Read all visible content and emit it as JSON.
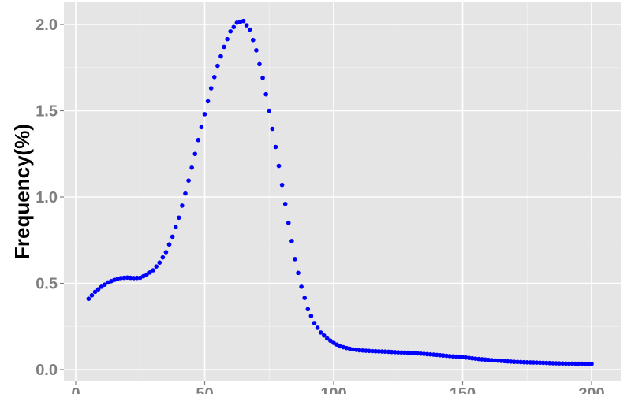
{
  "chart_data": {
    "type": "scatter",
    "title": "",
    "xlabel": "",
    "ylabel": "Frequency(%)",
    "xlim": [
      -5,
      206
    ],
    "ylim": [
      -0.02,
      2.1
    ],
    "x_ticks": [
      "0",
      "50",
      "100",
      "150",
      "200"
    ],
    "y_ticks": [
      "0.0",
      "0.5",
      "1.0",
      "1.5",
      "2.0"
    ],
    "grid": true,
    "panel_background": "#e5e5e5",
    "point_color": "#0000ff",
    "x": [
      5,
      7.5,
      10,
      12.5,
      15,
      17.5,
      20,
      22.5,
      25,
      27.5,
      30,
      32.5,
      35,
      37.5,
      40,
      42.5,
      45,
      47.5,
      50,
      52.5,
      55,
      57.5,
      60,
      62.5,
      65,
      67.5,
      70,
      72.5,
      75,
      77.5,
      80,
      82.5,
      85,
      87.5,
      90,
      92.5,
      95,
      97.5,
      100,
      102.5,
      105,
      107.5,
      110,
      115,
      120,
      125,
      130,
      135,
      140,
      145,
      150,
      155,
      160,
      165,
      170,
      175,
      180,
      185,
      190,
      195,
      200
    ],
    "y": [
      0.41,
      0.45,
      0.48,
      0.505,
      0.52,
      0.53,
      0.533,
      0.53,
      0.532,
      0.55,
      0.575,
      0.62,
      0.68,
      0.77,
      0.88,
      1.02,
      1.17,
      1.33,
      1.48,
      1.63,
      1.76,
      1.87,
      1.96,
      2.01,
      2.02,
      1.97,
      1.85,
      1.69,
      1.5,
      1.29,
      1.07,
      0.85,
      0.64,
      0.48,
      0.35,
      0.27,
      0.215,
      0.18,
      0.155,
      0.135,
      0.125,
      0.117,
      0.112,
      0.107,
      0.104,
      0.1,
      0.097,
      0.091,
      0.085,
      0.078,
      0.072,
      0.063,
      0.056,
      0.05,
      0.045,
      0.042,
      0.04,
      0.037,
      0.035,
      0.034,
      0.033
    ]
  }
}
